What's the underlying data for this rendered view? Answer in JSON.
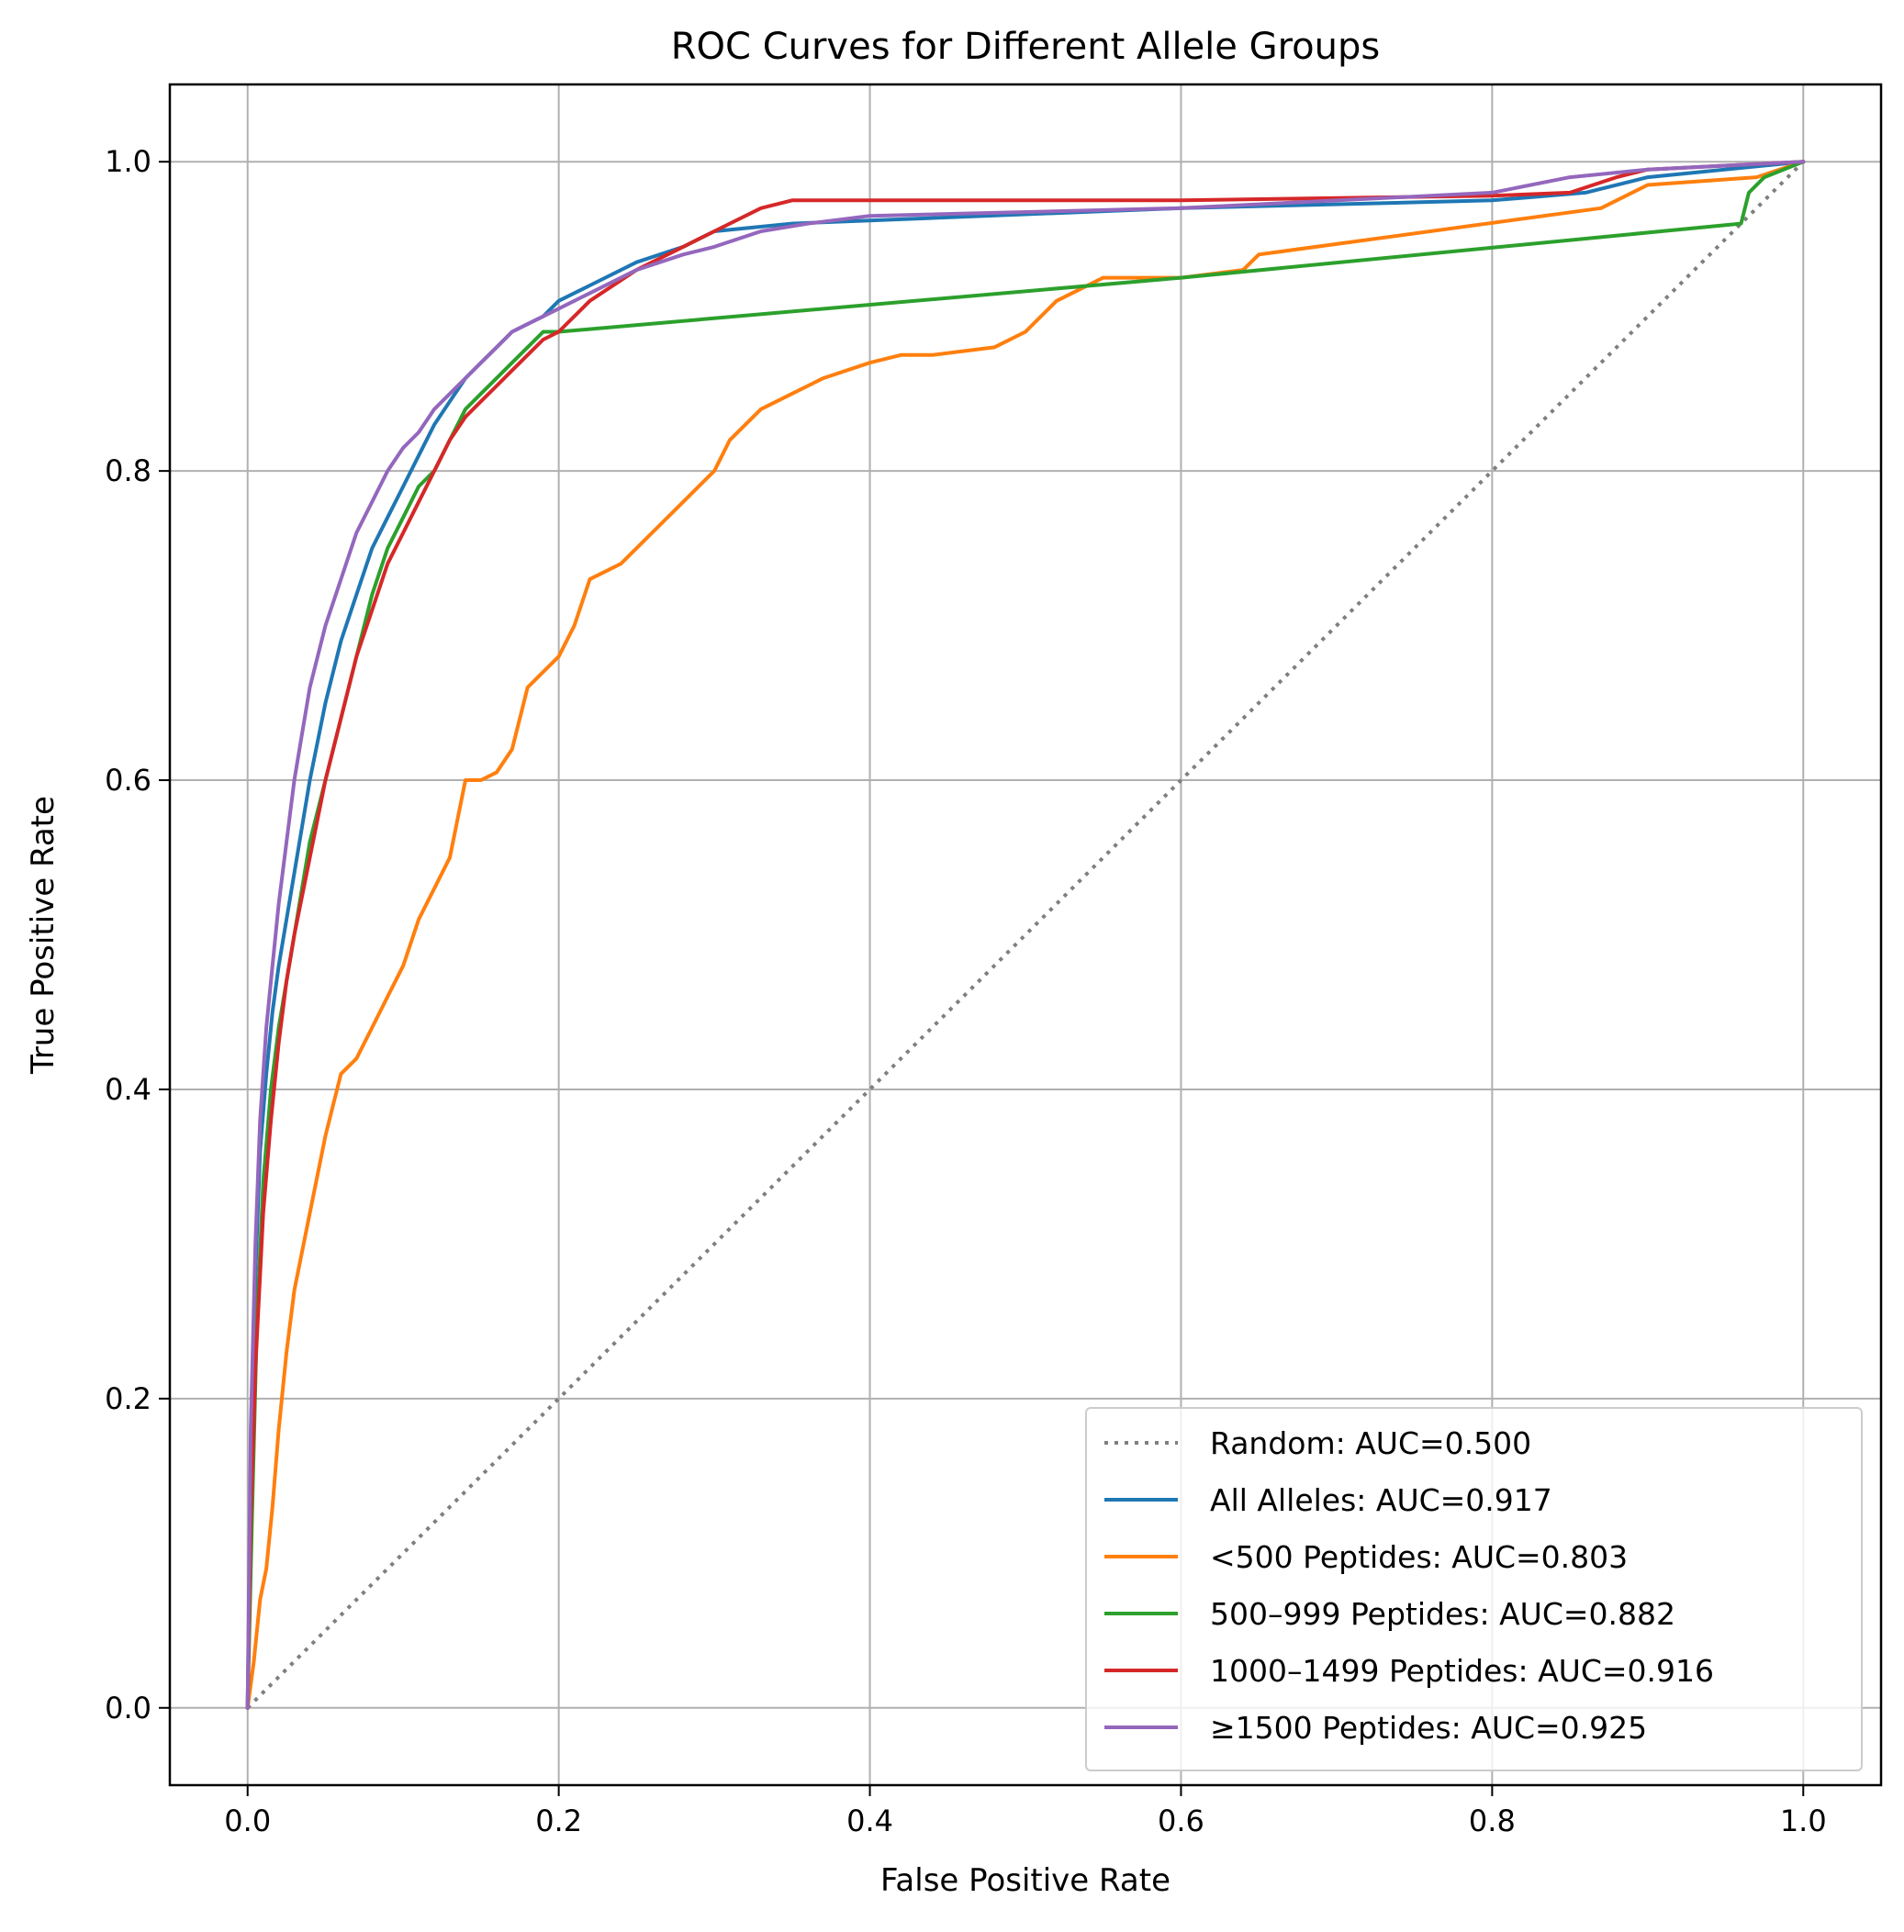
{
  "chart_data": {
    "type": "line",
    "title": "ROC Curves for Different Allele Groups",
    "xlabel": "False Positive Rate",
    "ylabel": "True Positive Rate",
    "xlim": [
      -0.05,
      1.05
    ],
    "ylim": [
      -0.05,
      1.05
    ],
    "xticks": [
      "0.0",
      "0.2",
      "0.4",
      "0.6",
      "0.8",
      "1.0"
    ],
    "yticks": [
      "0.0",
      "0.2",
      "0.4",
      "0.6",
      "0.8",
      "1.0"
    ],
    "grid": true,
    "legend_position": "lower right",
    "series": [
      {
        "name": "Random: AUC=0.500",
        "color": "#7f7f7f",
        "dash": "dotted",
        "x": [
          0,
          1
        ],
        "y": [
          0,
          1
        ]
      },
      {
        "name": "All Alleles: AUC=0.917",
        "color": "#1f77b4",
        "dash": "solid",
        "x": [
          0,
          0.002,
          0.005,
          0.008,
          0.012,
          0.016,
          0.02,
          0.025,
          0.03,
          0.04,
          0.05,
          0.06,
          0.07,
          0.08,
          0.09,
          0.1,
          0.11,
          0.12,
          0.13,
          0.14,
          0.15,
          0.16,
          0.17,
          0.18,
          0.19,
          0.2,
          0.22,
          0.25,
          0.28,
          0.3,
          0.35,
          0.4,
          0.6,
          0.8,
          0.86,
          0.9,
          1.0
        ],
        "y": [
          0,
          0.15,
          0.28,
          0.36,
          0.41,
          0.45,
          0.48,
          0.51,
          0.54,
          0.6,
          0.65,
          0.69,
          0.72,
          0.75,
          0.77,
          0.79,
          0.81,
          0.83,
          0.845,
          0.86,
          0.87,
          0.88,
          0.89,
          0.895,
          0.9,
          0.91,
          0.92,
          0.935,
          0.945,
          0.955,
          0.96,
          0.962,
          0.97,
          0.975,
          0.98,
          0.99,
          1.0
        ]
      },
      {
        "name": "<500 Peptides: AUC=0.803",
        "color": "#ff7f0e",
        "dash": "solid",
        "x": [
          0,
          0.004,
          0.008,
          0.012,
          0.016,
          0.02,
          0.025,
          0.03,
          0.04,
          0.05,
          0.055,
          0.06,
          0.07,
          0.08,
          0.09,
          0.1,
          0.11,
          0.12,
          0.13,
          0.14,
          0.15,
          0.16,
          0.17,
          0.18,
          0.19,
          0.2,
          0.21,
          0.22,
          0.24,
          0.26,
          0.28,
          0.3,
          0.31,
          0.33,
          0.35,
          0.37,
          0.4,
          0.42,
          0.44,
          0.48,
          0.5,
          0.52,
          0.55,
          0.59,
          0.6,
          0.64,
          0.65,
          0.87,
          0.9,
          0.97,
          1.0
        ],
        "y": [
          0,
          0.03,
          0.07,
          0.09,
          0.13,
          0.18,
          0.23,
          0.27,
          0.32,
          0.37,
          0.39,
          0.41,
          0.42,
          0.44,
          0.46,
          0.48,
          0.51,
          0.53,
          0.55,
          0.6,
          0.6,
          0.605,
          0.62,
          0.66,
          0.67,
          0.68,
          0.7,
          0.73,
          0.74,
          0.76,
          0.78,
          0.8,
          0.82,
          0.84,
          0.85,
          0.86,
          0.87,
          0.875,
          0.875,
          0.88,
          0.89,
          0.91,
          0.925,
          0.925,
          0.925,
          0.93,
          0.94,
          0.97,
          0.985,
          0.99,
          1.0
        ]
      },
      {
        "name": "500–999 Peptides: AUC=0.882",
        "color": "#2ca02c",
        "dash": "solid",
        "x": [
          0,
          0.003,
          0.006,
          0.01,
          0.015,
          0.02,
          0.025,
          0.03,
          0.035,
          0.04,
          0.05,
          0.06,
          0.07,
          0.08,
          0.09,
          0.1,
          0.11,
          0.12,
          0.13,
          0.14,
          0.15,
          0.16,
          0.17,
          0.18,
          0.19,
          0.2,
          0.2,
          0.6,
          0.96,
          0.965,
          0.975,
          1.0
        ],
        "y": [
          0,
          0.13,
          0.25,
          0.34,
          0.4,
          0.44,
          0.47,
          0.5,
          0.53,
          0.56,
          0.6,
          0.64,
          0.68,
          0.72,
          0.75,
          0.77,
          0.79,
          0.8,
          0.82,
          0.84,
          0.85,
          0.86,
          0.87,
          0.88,
          0.89,
          0.89,
          0.89,
          0.925,
          0.96,
          0.98,
          0.99,
          1.0
        ]
      },
      {
        "name": "1000–1499 Peptides: AUC=0.916",
        "color": "#d62728",
        "dash": "solid",
        "x": [
          0,
          0.002,
          0.005,
          0.01,
          0.015,
          0.02,
          0.025,
          0.03,
          0.04,
          0.05,
          0.06,
          0.07,
          0.08,
          0.09,
          0.1,
          0.11,
          0.12,
          0.13,
          0.14,
          0.15,
          0.16,
          0.17,
          0.18,
          0.19,
          0.2,
          0.22,
          0.25,
          0.28,
          0.3,
          0.33,
          0.35,
          0.4,
          0.6,
          0.8,
          0.85,
          0.88,
          0.9,
          1.0
        ],
        "y": [
          0,
          0.12,
          0.22,
          0.32,
          0.38,
          0.43,
          0.47,
          0.5,
          0.55,
          0.6,
          0.64,
          0.68,
          0.71,
          0.74,
          0.76,
          0.78,
          0.8,
          0.82,
          0.835,
          0.845,
          0.855,
          0.865,
          0.875,
          0.885,
          0.89,
          0.91,
          0.93,
          0.945,
          0.955,
          0.97,
          0.975,
          0.975,
          0.975,
          0.978,
          0.98,
          0.99,
          0.995,
          1.0
        ]
      },
      {
        "name": "≥1500 Peptides: AUC=0.925",
        "color": "#9467bd",
        "dash": "solid",
        "x": [
          0,
          0.002,
          0.005,
          0.008,
          0.012,
          0.016,
          0.02,
          0.025,
          0.03,
          0.035,
          0.04,
          0.05,
          0.06,
          0.07,
          0.08,
          0.09,
          0.1,
          0.11,
          0.12,
          0.13,
          0.14,
          0.15,
          0.16,
          0.17,
          0.18,
          0.19,
          0.2,
          0.22,
          0.25,
          0.28,
          0.3,
          0.33,
          0.36,
          0.4,
          0.6,
          0.8,
          0.85,
          0.9,
          1.0
        ],
        "y": [
          0,
          0.18,
          0.3,
          0.38,
          0.44,
          0.48,
          0.52,
          0.56,
          0.6,
          0.63,
          0.66,
          0.7,
          0.73,
          0.76,
          0.78,
          0.8,
          0.815,
          0.825,
          0.84,
          0.85,
          0.86,
          0.87,
          0.88,
          0.89,
          0.895,
          0.9,
          0.905,
          0.915,
          0.93,
          0.94,
          0.945,
          0.955,
          0.96,
          0.965,
          0.97,
          0.98,
          0.99,
          0.995,
          1.0
        ]
      }
    ]
  }
}
